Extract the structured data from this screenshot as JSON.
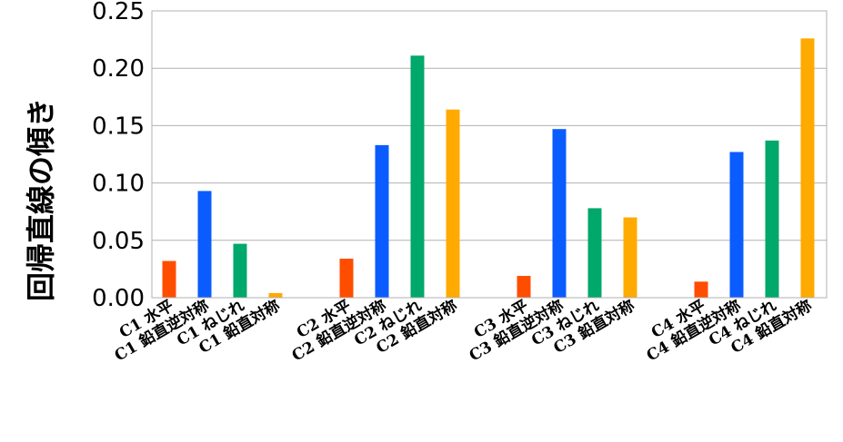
{
  "chart_data": {
    "type": "bar",
    "ylabel": "回帰直線の傾き",
    "ylim": [
      0,
      0.25
    ],
    "yticks": [
      "0.00",
      "0.05",
      "0.10",
      "0.15",
      "0.20",
      "0.25"
    ],
    "grid": true,
    "groups": [
      {
        "bars": [
          {
            "label": "C1 水平",
            "value": 0.032,
            "color": "#ff4d00"
          },
          {
            "label": "C1 鉛直逆対称",
            "value": 0.093,
            "color": "#0a5cff"
          },
          {
            "label": "C1 ねじれ",
            "value": 0.047,
            "color": "#00a86b"
          },
          {
            "label": "C1 鉛直対称",
            "value": 0.004,
            "color": "#ffaa00"
          }
        ]
      },
      {
        "bars": [
          {
            "label": "C2 水平",
            "value": 0.034,
            "color": "#ff4d00"
          },
          {
            "label": "C2 鉛直逆対称",
            "value": 0.133,
            "color": "#0a5cff"
          },
          {
            "label": "C2 ねじれ",
            "value": 0.211,
            "color": "#00a86b"
          },
          {
            "label": "C2 鉛直対称",
            "value": 0.164,
            "color": "#ffaa00"
          }
        ]
      },
      {
        "bars": [
          {
            "label": "C3 水平",
            "value": 0.019,
            "color": "#ff4d00"
          },
          {
            "label": "C3 鉛直逆対称",
            "value": 0.147,
            "color": "#0a5cff"
          },
          {
            "label": "C3 ねじれ",
            "value": 0.078,
            "color": "#00a86b"
          },
          {
            "label": "C3 鉛直対称",
            "value": 0.07,
            "color": "#ffaa00"
          }
        ]
      },
      {
        "bars": [
          {
            "label": "C4 水平",
            "value": 0.014,
            "color": "#ff4d00"
          },
          {
            "label": "C4 鉛直逆対称",
            "value": 0.127,
            "color": "#0a5cff"
          },
          {
            "label": "C4 ねじれ",
            "value": 0.137,
            "color": "#00a86b"
          },
          {
            "label": "C4 鉛直対称",
            "value": 0.226,
            "color": "#ffaa00"
          }
        ]
      }
    ]
  }
}
